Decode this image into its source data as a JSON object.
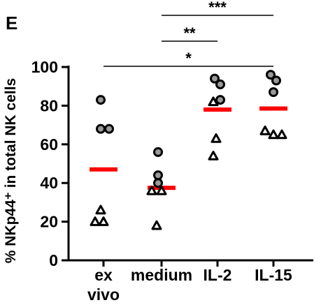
{
  "panel_label": "E",
  "chart_data": {
    "type": "scatter",
    "ylabel": "% NKp44⁺ in total NK cells",
    "ylim": [
      0,
      100
    ],
    "yticks": [
      0,
      20,
      40,
      60,
      80,
      100
    ],
    "categories": [
      "ex vivo",
      "medium",
      "IL-2",
      "IL-15"
    ],
    "point_shapes": {
      "circle": "circle-marker",
      "triangle": "triangle-marker"
    },
    "groups": [
      {
        "category": "ex vivo",
        "mean": 47,
        "circles": [
          83,
          68,
          68
        ],
        "triangles": [
          26,
          20,
          20
        ]
      },
      {
        "category": "medium",
        "mean": 37.5,
        "circles": [
          56,
          44,
          40
        ],
        "triangles": [
          36,
          36,
          18
        ]
      },
      {
        "category": "IL-2",
        "mean": 78,
        "circles": [
          94,
          91,
          83
        ],
        "triangles": [
          82,
          63,
          54
        ]
      },
      {
        "category": "IL-15",
        "mean": 78.5,
        "circles": [
          96,
          93,
          87
        ],
        "triangles": [
          67,
          65,
          65
        ]
      }
    ],
    "significance": [
      {
        "label": "***",
        "from": "medium",
        "to": "IL-15"
      },
      {
        "label": "**",
        "from": "medium",
        "to": "IL-2"
      },
      {
        "label": "*",
        "from": "ex vivo",
        "to": "IL-15"
      }
    ],
    "colors": {
      "mean_bar": "#ff0000",
      "circle_fill": "#999999",
      "triangle_fill": "#ffffff",
      "stroke": "#000000"
    }
  }
}
